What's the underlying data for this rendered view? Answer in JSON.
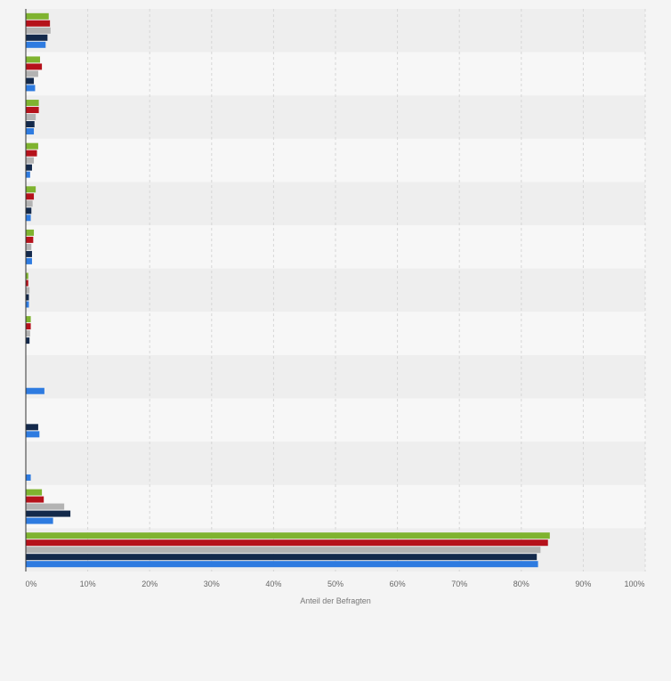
{
  "chart_data": {
    "type": "bar",
    "orientation": "horizontal",
    "categories": [
      "",
      "",
      "",
      "",
      "",
      "",
      "",
      "",
      "",
      "",
      "",
      "",
      ""
    ],
    "series": [
      {
        "color": "#7fb32f",
        "values": [
          3.7,
          2.3,
          2.1,
          2.0,
          1.6,
          1.3,
          0.4,
          0.8,
          null,
          null,
          null,
          2.6,
          84.6
        ]
      },
      {
        "color": "#b5121b",
        "values": [
          3.9,
          2.6,
          2.1,
          1.8,
          1.3,
          1.2,
          0.4,
          0.8,
          null,
          null,
          null,
          2.9,
          84.3
        ]
      },
      {
        "color": "#b3b3b3",
        "values": [
          4.0,
          2.0,
          1.6,
          1.3,
          1.1,
          0.9,
          0.6,
          0.7,
          null,
          null,
          null,
          6.2,
          83.1
        ]
      },
      {
        "color": "#13294b",
        "values": [
          3.5,
          1.3,
          1.4,
          1.0,
          0.9,
          1.0,
          0.5,
          0.6,
          null,
          2.0,
          null,
          7.2,
          82.5
        ]
      },
      {
        "color": "#2e7be0",
        "values": [
          3.2,
          1.5,
          1.3,
          0.7,
          0.8,
          1.0,
          0.5,
          null,
          3.0,
          2.2,
          0.8,
          4.4,
          82.7
        ]
      }
    ],
    "xlim": [
      0,
      100
    ],
    "x_ticks": [
      "0%",
      "10%",
      "20%",
      "30%",
      "40%",
      "50%",
      "60%",
      "70%",
      "80%",
      "90%",
      "100%"
    ],
    "xlabel": "Anteil der Befragten",
    "grid": true
  }
}
